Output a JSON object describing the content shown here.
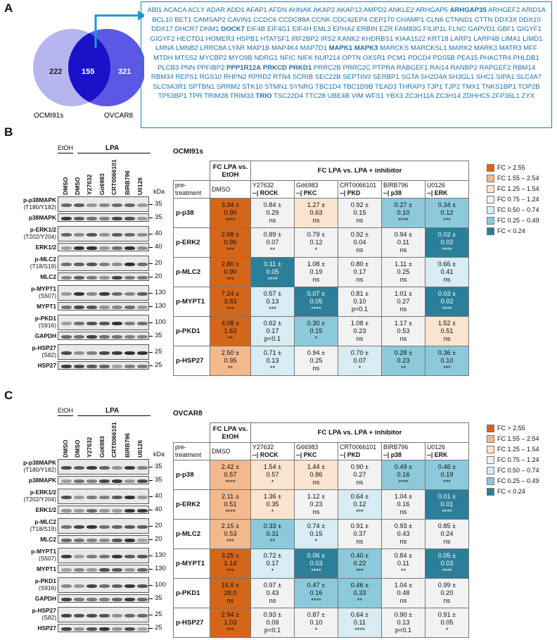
{
  "panels": {
    "a": "A",
    "b": "B",
    "c": "C"
  },
  "venn": {
    "left_count": "222",
    "middle_count": "155",
    "right_count": "321",
    "left_label": "OCMI91s",
    "right_label": "OVCAR8"
  },
  "genes": [
    [
      "ABI1",
      0
    ],
    [
      "ACACA",
      0
    ],
    [
      "ACLY",
      0
    ],
    [
      "ADAR",
      0
    ],
    [
      "ADD1",
      0
    ],
    [
      "AFAP1",
      0
    ],
    [
      "AFDN",
      0
    ],
    [
      "AHNAK",
      0
    ],
    [
      "AKAP2",
      0
    ],
    [
      "AKAP13",
      0
    ],
    [
      "AMPD2",
      0
    ],
    [
      "ANKLE2",
      0
    ],
    [
      "ARHGAP5",
      0
    ],
    [
      "ARHGAP35",
      1
    ],
    [
      "ARHGEF2",
      0
    ],
    [
      "ARID1A",
      0
    ],
    [
      "BCL10",
      0
    ],
    [
      "BET1",
      0
    ],
    [
      "CAMSAP2",
      0
    ],
    [
      "CAVIN1",
      0
    ],
    [
      "CCDC6",
      0
    ],
    [
      "CCDC88A",
      0
    ],
    [
      "CCNK",
      0
    ],
    [
      "CDC42EP4",
      0
    ],
    [
      "CEP170",
      0
    ],
    [
      "CHAMP1",
      0
    ],
    [
      "CLN6",
      0
    ],
    [
      "CTNND1",
      0
    ],
    [
      "CTTN",
      0
    ],
    [
      "DDX3X",
      0
    ],
    [
      "DDX10",
      0
    ],
    [
      "DDX17",
      0
    ],
    [
      "DHCR7",
      0
    ],
    [
      "DNM1",
      0
    ],
    [
      "DOCK7",
      1
    ],
    [
      "EIF4B",
      0
    ],
    [
      "EIF4G1",
      0
    ],
    [
      "EIF4H",
      0
    ],
    [
      "EML3",
      0
    ],
    [
      "EPHA2",
      0
    ],
    [
      "ERBIN",
      0
    ],
    [
      "EZR",
      0
    ],
    [
      "FAM83G",
      0
    ],
    [
      "FILIP1L",
      0
    ],
    [
      "FLNC",
      0
    ],
    [
      "GAPVD1",
      0
    ],
    [
      "GBF1",
      0
    ],
    [
      "GIGYF1",
      0
    ],
    [
      "GIGYF2",
      0
    ],
    [
      "HECTD1",
      0
    ],
    [
      "HOMER3",
      0
    ],
    [
      "HSPB1",
      0
    ],
    [
      "HTATSF1",
      0
    ],
    [
      "IRF2BP2",
      0
    ],
    [
      "IRS2",
      0
    ],
    [
      "KANK2",
      0
    ],
    [
      "KHDRBS1",
      0
    ],
    [
      "KIAA1522",
      0
    ],
    [
      "KRT18",
      0
    ],
    [
      "LARP1",
      0
    ],
    [
      "LARP4B",
      0
    ],
    [
      "LIMA1",
      0
    ],
    [
      "LIMD1",
      0
    ],
    [
      "LMNA",
      0
    ],
    [
      "LMNB2",
      0
    ],
    [
      "LRRC8A",
      0
    ],
    [
      "LYAR",
      0
    ],
    [
      "MAP1B",
      0
    ],
    [
      "MAP4K4",
      0
    ],
    [
      "MAP7D1",
      0
    ],
    [
      "MAPK1",
      1
    ],
    [
      "MAPK3",
      1
    ],
    [
      "MARCKS",
      0
    ],
    [
      "MARCKSL1",
      0
    ],
    [
      "MARK2",
      0
    ],
    [
      "MARK3",
      0
    ],
    [
      "MATR3",
      0
    ],
    [
      "MFF",
      0
    ],
    [
      "MTDH",
      0
    ],
    [
      "MTSS2",
      0
    ],
    [
      "MYCBP2",
      0
    ],
    [
      "MYO9B",
      0
    ],
    [
      "NDRG1",
      0
    ],
    [
      "NFIC",
      0
    ],
    [
      "NIFK",
      0
    ],
    [
      "NUP214",
      0
    ],
    [
      "OPTN",
      0
    ],
    [
      "OXSR1",
      0
    ],
    [
      "PCM1",
      0
    ],
    [
      "PDCD4",
      0
    ],
    [
      "PDS5B",
      0
    ],
    [
      "PEA15",
      0
    ],
    [
      "PHACTR4",
      0
    ],
    [
      "PHLDB1",
      0
    ],
    [
      "PLCB3",
      0
    ],
    [
      "PNN",
      0
    ],
    [
      "PPFIBP2",
      0
    ],
    [
      "PPP1R12A",
      1
    ],
    [
      "PRKCD",
      1
    ],
    [
      "PRKD1",
      1
    ],
    [
      "PRRC2B",
      0
    ],
    [
      "PRRC2C",
      0
    ],
    [
      "PTPRA",
      0
    ],
    [
      "RABGEF1",
      0
    ],
    [
      "RAI14",
      0
    ],
    [
      "RANBP2",
      0
    ],
    [
      "RAPGEF2",
      0
    ],
    [
      "RBM14",
      0
    ],
    [
      "RBM34",
      0
    ],
    [
      "REPS1",
      0
    ],
    [
      "RGS10",
      0
    ],
    [
      "RHPN2",
      0
    ],
    [
      "RPRD2",
      0
    ],
    [
      "RTN4",
      0
    ],
    [
      "SCRIB",
      0
    ],
    [
      "SEC22B",
      0
    ],
    [
      "SEPTIN9",
      0
    ],
    [
      "SERBP1",
      0
    ],
    [
      "SGTA",
      0
    ],
    [
      "SH2D4A",
      0
    ],
    [
      "SH3GL1",
      0
    ],
    [
      "SHC1",
      0
    ],
    [
      "SIPA1",
      0
    ],
    [
      "SLC4A7",
      0
    ],
    [
      "SLC9A3R1",
      0
    ],
    [
      "SPTBN1",
      0
    ],
    [
      "SRRM2",
      0
    ],
    [
      "STK10",
      0
    ],
    [
      "STMN1",
      0
    ],
    [
      "SYNRG",
      0
    ],
    [
      "TBC1D4",
      0
    ],
    [
      "TBC1D9B",
      0
    ],
    [
      "TEAD3",
      0
    ],
    [
      "THRAP3",
      0
    ],
    [
      "TJP1",
      0
    ],
    [
      "TJP2",
      0
    ],
    [
      "TMX1",
      0
    ],
    [
      "TNKS1BP1",
      0
    ],
    [
      "TOP2B",
      0
    ],
    [
      "TP53BP1",
      0
    ],
    [
      "TPR",
      0
    ],
    [
      "TRIM28",
      0
    ],
    [
      "TRIM33",
      0
    ],
    [
      "TRIO",
      1
    ],
    [
      "TSC22D4",
      0
    ],
    [
      "TTC28",
      0
    ],
    [
      "UBE4B",
      0
    ],
    [
      "VIM",
      0
    ],
    [
      "WFS1",
      0
    ],
    [
      "YBX3",
      0
    ],
    [
      "ZC3H11A",
      0
    ],
    [
      "ZC3H14",
      0
    ],
    [
      "ZDHHC5",
      0
    ],
    [
      "ZFP36L1",
      0
    ],
    [
      "ZYX",
      0
    ]
  ],
  "blots": {
    "treat_etoh": "EtOH",
    "treat_lpa": "LPA",
    "kda": "kDa",
    "lanes": [
      "DMSO",
      "DMSO",
      "Y27632",
      "Gö6983",
      "CRT0066101",
      "BIRB796",
      "U0126"
    ],
    "rows": [
      {
        "name": "p-p38MAPK",
        "sub": "(T180/Y182)",
        "mw": "35"
      },
      {
        "name": "p38MAPK",
        "sub": "",
        "mw": "35"
      },
      {
        "name": "p-ERK1/2",
        "sub": "(T202/Y204)",
        "mw": "40"
      },
      {
        "name": "ERK1/2",
        "sub": "",
        "mw": "40"
      },
      {
        "name": "p-MLC2",
        "sub": "(T18/S19)",
        "mw": "20"
      },
      {
        "name": "MLC2",
        "sub": "",
        "mw": "20"
      },
      {
        "name": "p-MYPT1",
        "sub": "(S507)",
        "mw": "130"
      },
      {
        "name": "MYPT1",
        "sub": "",
        "mw": "130"
      },
      {
        "name": "p-PKD1",
        "sub": "(S916)",
        "mw": "100"
      },
      {
        "name": "GAPDH",
        "sub": "",
        "mw": "35"
      },
      {
        "name": "p-HSP27",
        "sub": "(S82)",
        "mw": "25"
      },
      {
        "name": "HSP27",
        "sub": "",
        "mw": "25"
      }
    ]
  },
  "tables": [
    {
      "title": "OCMI91s",
      "hdr_fc": "FC  LPA vs. EtOH",
      "hdr_inh": "FC  LPA  vs.  LPA + inhibitor",
      "pretreat": "pre-treatment",
      "cols": [
        [
          "DMSO",
          ""
        ],
        [
          "Y27632",
          "--| ROCK"
        ],
        [
          "Gö6983",
          "--| PKC"
        ],
        [
          "CRT0066101",
          "--| PKD"
        ],
        [
          "BIRB796",
          "--| p38"
        ],
        [
          "U0126",
          "--| ERK"
        ]
      ],
      "rows": [
        {
          "label": "p-p38",
          "cells": [
            [
              "3.34 ±",
              "0.90",
              "****"
            ],
            [
              "0.84 ±",
              "0.29",
              "ns"
            ],
            [
              "1.27 ±",
              "0.63",
              "ns"
            ],
            [
              "0.92 ±",
              "0.15",
              "ns"
            ],
            [
              "0.27 ±",
              "0.10",
              "****"
            ],
            [
              "0.34 ±",
              "0.12",
              "***"
            ]
          ]
        },
        {
          "label": "p-ERK2",
          "cells": [
            [
              "2.68 ±",
              "0.96",
              "***"
            ],
            [
              "0.89 ±",
              "0.07",
              "**"
            ],
            [
              "0.79 ±",
              "0.12",
              "*"
            ],
            [
              "0.92 ±",
              "0.04",
              "ns"
            ],
            [
              "0.94 ±",
              "0.11",
              "ns"
            ],
            [
              "0.02 ±",
              "0.02",
              "****"
            ]
          ]
        },
        {
          "label": "p-MLC2",
          "cells": [
            [
              "2.80 ±",
              "0.90",
              "***"
            ],
            [
              "0.11 ±",
              "0.05",
              "****"
            ],
            [
              "1.08 ±",
              "0.19",
              "ns"
            ],
            [
              "0.80 ±",
              "0.17",
              "ns"
            ],
            [
              "1.11 ±",
              "0.25",
              "ns"
            ],
            [
              "0.66 ±",
              "0.41",
              "ns"
            ]
          ]
        },
        {
          "label": "p-MYPT1",
          "cells": [
            [
              "7.24 ±",
              "3.83",
              "***"
            ],
            [
              "0.57 ±",
              "0.13",
              "***"
            ],
            [
              "0.07 ±",
              "0.05",
              "****"
            ],
            [
              "0.81 ±",
              "0.10",
              "p<0.1"
            ],
            [
              "1.01 ±",
              "0.27",
              "ns"
            ],
            [
              "0.03 ±",
              "0.02",
              "****"
            ]
          ]
        },
        {
          "label": "p-PKD1",
          "cells": [
            [
              "4.08 ±",
              "1.63",
              "**"
            ],
            [
              "0.62 ±",
              "0.17",
              "p<0.1"
            ],
            [
              "0.30 ±",
              "0.15",
              "*"
            ],
            [
              "1.08 ±",
              "0.23",
              "ns"
            ],
            [
              "1.17 ±",
              "0.53",
              "ns"
            ],
            [
              "1.52 ±",
              "0.51",
              "ns"
            ]
          ]
        },
        {
          "label": "p-HSP27",
          "cells": [
            [
              "2.50 ±",
              "0.95",
              "**"
            ],
            [
              "0.71 ±",
              "0.13",
              "**"
            ],
            [
              "0.94 ±",
              "0.25",
              "ns"
            ],
            [
              "0.70 ±",
              "0.07",
              "*"
            ],
            [
              "0.28 ±",
              "0.23",
              "**"
            ],
            [
              "0.36 ±",
              "0.10",
              "***"
            ]
          ]
        }
      ]
    },
    {
      "title": "OVCAR8",
      "hdr_fc": "FC  LPA vs. EtOH",
      "hdr_inh": "FC  LPA  vs.  LPA + inhibitor",
      "pretreat": "pre-treatment",
      "cols": [
        [
          "DMSO",
          ""
        ],
        [
          "Y27632",
          "--| ROCK"
        ],
        [
          "G66983",
          "--| PKC"
        ],
        [
          "CRT0066101",
          "--| PKD"
        ],
        [
          "BIRB796",
          "--| p38"
        ],
        [
          "U0126",
          "--| ERK"
        ]
      ],
      "rows": [
        {
          "label": "p-p38",
          "cells": [
            [
              "2.42 ±",
              "0.57",
              "****"
            ],
            [
              "1.54 ±",
              "0.57",
              "*"
            ],
            [
              "1.44 ±",
              "0.86",
              "ns"
            ],
            [
              "0.90 ±",
              "0.27",
              "ns"
            ],
            [
              "0.49 ±",
              "0.16",
              "****"
            ],
            [
              "0.46 ±",
              "0.19",
              "***"
            ]
          ]
        },
        {
          "label": "p-ERK2",
          "cells": [
            [
              "2.11 ±",
              "0.51",
              "****"
            ],
            [
              "1.36 ±",
              "0.35",
              "*"
            ],
            [
              "1.12 ±",
              "0.23",
              "ns"
            ],
            [
              "0.64 ±",
              "0.12",
              "***"
            ],
            [
              "1.04 ±",
              "0.16",
              "ns"
            ],
            [
              "0.01 ±",
              "0.01",
              "****"
            ]
          ]
        },
        {
          "label": "p-MLC2",
          "cells": [
            [
              "2.15 ±",
              "0.53",
              "***"
            ],
            [
              "0.33 ±",
              "0.31",
              "**"
            ],
            [
              "0.74 ±",
              "0.15",
              "*"
            ],
            [
              "0.91 ±",
              "0.37",
              "ns"
            ],
            [
              "0.93 ±",
              "0.43",
              "ns"
            ],
            [
              "0.85 ±",
              "0.24",
              "ns"
            ]
          ]
        },
        {
          "label": "p-MYPT1",
          "cells": [
            [
              "3.25 ±",
              "1.14",
              "***"
            ],
            [
              "0.72 ±",
              "0.17",
              "*"
            ],
            [
              "0.06 ±",
              "0.03",
              "****"
            ],
            [
              "0.40 ±",
              "0.22",
              "***"
            ],
            [
              "0.84 ±",
              "0.11",
              "**"
            ],
            [
              "0.05 ±",
              "0.03",
              "****"
            ]
          ]
        },
        {
          "label": "p-PKD1",
          "cells": [
            [
              "16.6 ±",
              "28.0",
              "ns"
            ],
            [
              "0.97 ±",
              "0.43",
              "ns"
            ],
            [
              "0.47 ±",
              "0.16",
              "****"
            ],
            [
              "0.46 ±",
              "0.33",
              "**"
            ],
            [
              "1.04 ±",
              "0.48",
              "ns"
            ],
            [
              "0.99 ±",
              "0.20",
              "ns"
            ]
          ]
        },
        {
          "label": "p-HSP27",
          "cells": [
            [
              "2.94 ±",
              "1.03",
              "***"
            ],
            [
              "0.93 ±",
              "0.09",
              "p<0.1"
            ],
            [
              "0.87 ±",
              "0.10",
              "*"
            ],
            [
              "0.64 ±",
              "0.11",
              "****"
            ],
            [
              "0.90 ±",
              "0.13",
              "p<0.1"
            ],
            [
              "0.91 ±",
              "0.05",
              "*"
            ]
          ]
        }
      ]
    }
  ],
  "legend": [
    {
      "label": "FC  >  2.55",
      "color": "#d4661a"
    },
    {
      "label": "FC  1.55 – 2.54",
      "color": "#f2b98c"
    },
    {
      "label": "FC  1.25 – 1.54",
      "color": "#fbe4cf"
    },
    {
      "label": "FC  0.75 – 1.24",
      "color": "#f2f2f2"
    },
    {
      "label": "FC  0.50 – 0.74",
      "color": "#d7ecf3"
    },
    {
      "label": "FC  0.25 – 0.49",
      "color": "#8ccadb"
    },
    {
      "label": "FC  < 0.24",
      "color": "#2c7f98"
    }
  ]
}
